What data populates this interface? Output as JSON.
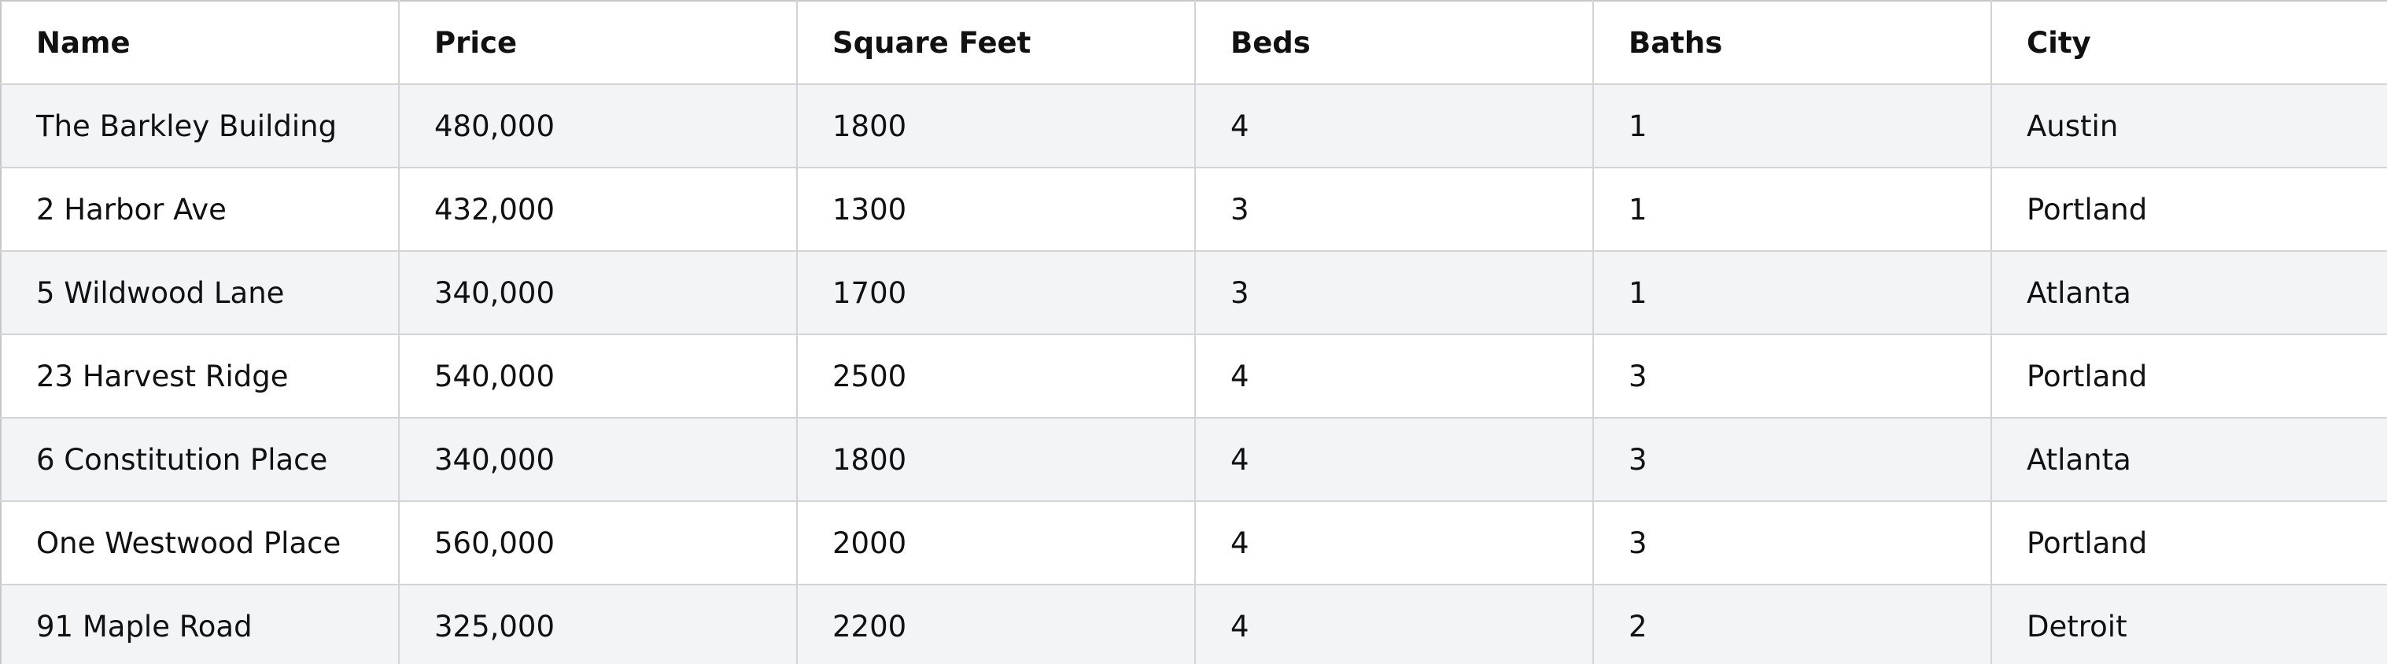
{
  "table": {
    "columns": [
      "Name",
      "Price",
      "Square Feet",
      "Beds",
      "Baths",
      "City"
    ],
    "rows": [
      [
        "The Barkley Building",
        "480,000",
        "1800",
        "4",
        "1",
        "Austin"
      ],
      [
        "2 Harbor Ave",
        "432,000",
        "1300",
        "3",
        "1",
        "Portland"
      ],
      [
        "5 Wildwood Lane",
        "340,000",
        "1700",
        "3",
        "1",
        "Atlanta"
      ],
      [
        "23 Harvest Ridge",
        "540,000",
        "2500",
        "4",
        "3",
        "Portland"
      ],
      [
        "6 Constitution Place",
        "340,000",
        "1800",
        "4",
        "3",
        "Atlanta"
      ],
      [
        "One Westwood Place",
        "560,000",
        "2000",
        "4",
        "3",
        "Portland"
      ],
      [
        "91 Maple Road",
        "325,000",
        "2200",
        "4",
        "2",
        "Detroit"
      ]
    ]
  }
}
